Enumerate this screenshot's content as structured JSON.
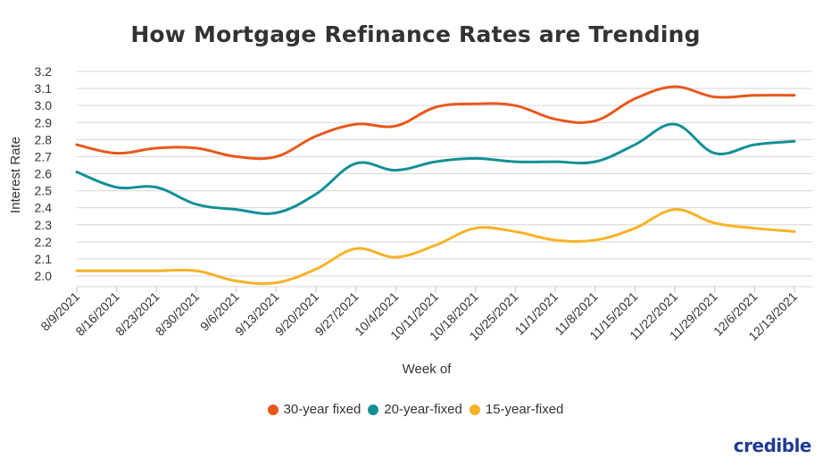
{
  "chart_data": {
    "type": "line",
    "title": "How Mortgage Refinance Rates are Trending",
    "xlabel": "Week of",
    "ylabel": "Interest Rate",
    "ylim": [
      1.95,
      3.25
    ],
    "yticks": [
      "3.2",
      "3.1",
      "3.0",
      "2.9",
      "2.8",
      "2.7",
      "2.6",
      "2.5",
      "2.4",
      "2.3",
      "2.2",
      "2.1",
      "2.0"
    ],
    "grid": "horizontal",
    "legend_position": "bottom",
    "categories": [
      "8/9/2021",
      "8/16/2021",
      "8/23/2021",
      "8/30/2021",
      "9/6/2021",
      "9/13/2021",
      "9/20/2021",
      "9/27/2021",
      "10/4/2021",
      "10/11/2021",
      "10/18/2021",
      "10/25/2021",
      "11/1/2021",
      "11/8/2021",
      "11/15/2021",
      "11/22/2021",
      "11/29/2021",
      "12/6/2021",
      "12/13/2021"
    ],
    "series": [
      {
        "name": "30-year fixed",
        "color": "#e8581c",
        "values": [
          2.77,
          2.72,
          2.75,
          2.75,
          2.7,
          2.7,
          2.82,
          2.89,
          2.88,
          2.99,
          3.01,
          3.0,
          2.92,
          2.91,
          3.04,
          3.11,
          3.05,
          3.06,
          3.06
        ]
      },
      {
        "name": "20-year-fixed",
        "color": "#148f96",
        "values": [
          2.61,
          2.52,
          2.52,
          2.42,
          2.39,
          2.37,
          2.48,
          2.66,
          2.62,
          2.67,
          2.69,
          2.67,
          2.67,
          2.67,
          2.77,
          2.89,
          2.72,
          2.77,
          2.79
        ]
      },
      {
        "name": "15-year-fixed",
        "color": "#f7b225",
        "values": [
          2.03,
          2.03,
          2.03,
          2.03,
          1.97,
          1.96,
          2.04,
          2.16,
          2.11,
          2.18,
          2.28,
          2.26,
          2.21,
          2.21,
          2.28,
          2.39,
          2.31,
          2.28,
          2.26
        ]
      }
    ]
  },
  "brand": {
    "name": "credible",
    "color": "#1f3a93"
  }
}
